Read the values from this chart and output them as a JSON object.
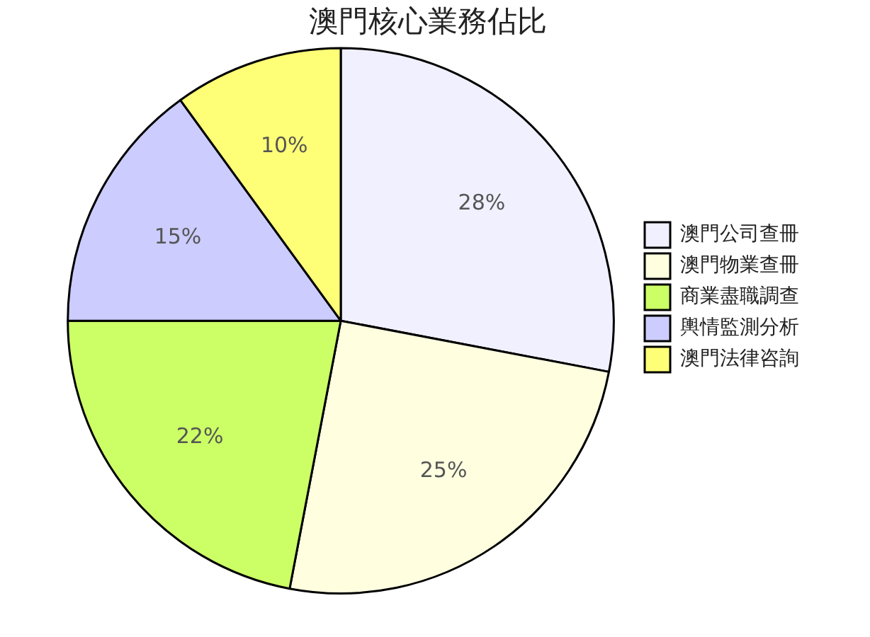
{
  "chart_data": {
    "type": "pie",
    "title": "澳門核心業務佔比",
    "categories": [
      "澳門公司查冊",
      "澳門物業查冊",
      "商業盡職調查",
      "輿情監測分析",
      "澳門法律咨詢"
    ],
    "values": [
      28,
      25,
      22,
      15,
      10
    ],
    "colors": [
      "#f0f0ff",
      "#ffffe0",
      "#ccff66",
      "#ccccff",
      "#ffff77"
    ],
    "value_labels": [
      "28%",
      "25%",
      "22%",
      "15%",
      "10%"
    ],
    "legend": "right"
  }
}
